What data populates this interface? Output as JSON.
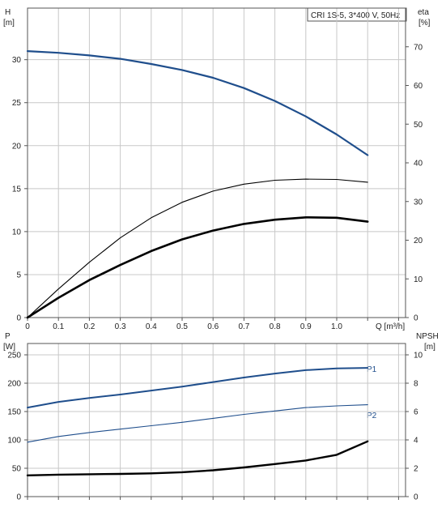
{
  "chart_data": [
    {
      "type": "line",
      "title": "CRI 1S-5, 3*400 V, 50Hz",
      "xlabel": "Q [m³/h]",
      "x_ticks": [
        "0",
        "0.1",
        "0.2",
        "0.3",
        "0.4",
        "0.5",
        "0.6",
        "0.7",
        "0.8",
        "0.9",
        "1.0"
      ],
      "xlim": [
        0,
        1.2
      ],
      "left_axis": {
        "label_line1": "H",
        "label_line2": "[m]",
        "ylim": [
          0,
          36
        ],
        "ticks": [
          "0",
          "5",
          "10",
          "15",
          "20",
          "25",
          "30"
        ]
      },
      "right_axis": {
        "label_line1": "eta",
        "label_line2": "[%]",
        "ylim": [
          0,
          80
        ],
        "ticks": [
          "0",
          "10",
          "20",
          "30",
          "40",
          "50",
          "60",
          "70"
        ]
      },
      "grid": true,
      "series": [
        {
          "axis": "left",
          "color": "#1f4e8c",
          "width": 2.2,
          "x": [
            0,
            0.1,
            0.2,
            0.3,
            0.4,
            0.5,
            0.6,
            0.7,
            0.8,
            0.9,
            1.0,
            1.1
          ],
          "y": [
            31.0,
            30.8,
            30.5,
            30.1,
            29.5,
            28.8,
            27.9,
            26.7,
            25.2,
            23.4,
            21.3,
            18.9
          ]
        },
        {
          "axis": "right",
          "color": "#000000",
          "width": 1.1,
          "x": [
            0,
            0.1,
            0.2,
            0.3,
            0.4,
            0.5,
            0.6,
            0.7,
            0.8,
            0.9,
            1.0,
            1.1
          ],
          "y": [
            0,
            7.4,
            14.3,
            20.6,
            25.8,
            29.8,
            32.7,
            34.5,
            35.5,
            35.8,
            35.7,
            35.0
          ]
        },
        {
          "axis": "right",
          "color": "#000000",
          "width": 2.6,
          "x": [
            0,
            0.1,
            0.2,
            0.3,
            0.4,
            0.5,
            0.6,
            0.7,
            0.8,
            0.9,
            1.0,
            1.1
          ],
          "y": [
            0,
            5.1,
            9.7,
            13.6,
            17.2,
            20.2,
            22.5,
            24.2,
            25.3,
            25.9,
            25.8,
            24.8
          ]
        }
      ]
    },
    {
      "type": "line",
      "xlim": [
        0,
        1.2
      ],
      "left_axis": {
        "label_line1": "P",
        "label_line2": "[W]",
        "ylim": [
          0,
          270
        ],
        "ticks": [
          "0",
          "50",
          "100",
          "150",
          "200",
          "250"
        ]
      },
      "right_axis": {
        "label_line1": "NPSH",
        "label_line2": "[m]",
        "ylim": [
          0,
          10.8
        ],
        "ticks": [
          "0",
          "2",
          "4",
          "6",
          "8",
          "10"
        ]
      },
      "grid": true,
      "series": [
        {
          "name": "P1",
          "axis": "left",
          "color": "#1f4e8c",
          "width": 2.0,
          "x": [
            0,
            0.1,
            0.2,
            0.3,
            0.4,
            0.5,
            0.6,
            0.7,
            0.8,
            0.9,
            1.0,
            1.1
          ],
          "y": [
            157,
            167,
            174,
            180,
            187,
            194,
            202,
            210,
            217,
            223,
            226,
            227
          ]
        },
        {
          "name": "P2",
          "axis": "left",
          "color": "#1f4e8c",
          "width": 1.1,
          "x": [
            0,
            0.1,
            0.2,
            0.3,
            0.4,
            0.5,
            0.6,
            0.7,
            0.8,
            0.9,
            1.0,
            1.1
          ],
          "y": [
            96,
            106,
            113,
            119,
            125,
            131,
            138,
            145,
            151,
            157,
            160,
            162
          ]
        },
        {
          "axis": "right",
          "color": "#000000",
          "width": 2.4,
          "x": [
            0,
            0.1,
            0.2,
            0.3,
            0.4,
            0.5,
            0.6,
            0.7,
            0.8,
            0.9,
            1.0,
            1.1
          ],
          "y": [
            1.5,
            1.55,
            1.58,
            1.6,
            1.64,
            1.72,
            1.86,
            2.06,
            2.3,
            2.55,
            2.95,
            3.9
          ]
        }
      ]
    }
  ]
}
